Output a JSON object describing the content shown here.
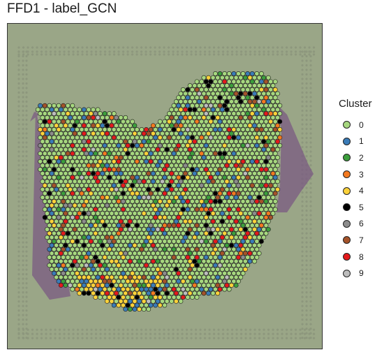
{
  "title": "FFD1 - label_GCN",
  "legend": {
    "title": "Cluster",
    "items": [
      {
        "label": "0",
        "color": "#a6d77f"
      },
      {
        "label": "1",
        "color": "#3a7cb8"
      },
      {
        "label": "2",
        "color": "#3c9e3c"
      },
      {
        "label": "3",
        "color": "#f47a20"
      },
      {
        "label": "4",
        "color": "#fcd23a"
      },
      {
        "label": "5",
        "color": "#000000"
      },
      {
        "label": "6",
        "color": "#8c8c8c"
      },
      {
        "label": "7",
        "color": "#a5532a"
      },
      {
        "label": "8",
        "color": "#e41a1c"
      },
      {
        "label": "9",
        "color": "#bdbdbd"
      }
    ]
  }
}
